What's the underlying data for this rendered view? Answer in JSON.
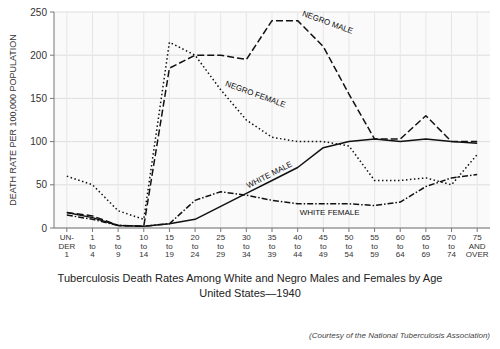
{
  "chart_data": {
    "type": "line",
    "title": "Tuberculosis Death Rates Among White and Negro Males and Females by Age",
    "subtitle": "United States—1940",
    "annotations": [
      "(Courtesy of the National Tuberculosis Association)"
    ],
    "y_label": "DEATH RATE PER 100,000 POPULATION",
    "categories": [
      "UN-\nDER\n1",
      "1\nto\n4",
      "5\nto\n9",
      "10\nto\n14",
      "15\nto\n19",
      "20\nto\n24",
      "25\nto\n29",
      "30\nto\n34",
      "35\nto\n39",
      "40\nto\n44",
      "45\nto\n49",
      "50\nto\n54",
      "55\nto\n59",
      "60\nto\n64",
      "65\nto\n69",
      "70\nto\n74",
      "75\nAND\nOVER"
    ],
    "series": [
      {
        "name": "NEGRO MALE",
        "color": "#111111",
        "line_style": "dashed",
        "values": [
          18,
          14,
          3,
          2,
          185,
          200,
          200,
          195,
          240,
          240,
          210,
          155,
          103,
          103,
          130,
          100,
          100
        ]
      },
      {
        "name": "NEGRO FEMALE",
        "color": "#111111",
        "line_style": "dotted",
        "values": [
          60,
          50,
          20,
          10,
          215,
          200,
          160,
          125,
          105,
          100,
          100,
          95,
          55,
          55,
          58,
          50,
          85
        ]
      },
      {
        "name": "WHITE MALE",
        "color": "#111111",
        "line_style": "solid",
        "values": [
          18,
          12,
          3,
          2,
          5,
          10,
          25,
          40,
          55,
          70,
          93,
          100,
          103,
          100,
          103,
          100,
          98
        ]
      },
      {
        "name": "WHITE FEMALE",
        "color": "#111111",
        "line_style": "dashdot",
        "values": [
          15,
          10,
          3,
          2,
          5,
          32,
          42,
          38,
          32,
          28,
          28,
          28,
          26,
          30,
          48,
          58,
          62
        ]
      }
    ],
    "ylim": [
      0,
      250
    ],
    "yticks": [
      0,
      50,
      100,
      150,
      200,
      250
    ],
    "grid": true
  }
}
